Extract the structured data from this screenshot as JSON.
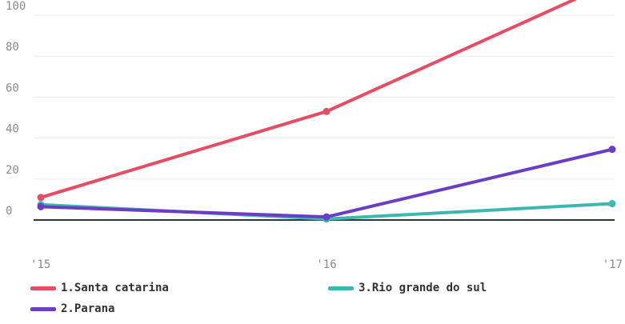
{
  "chart_data": {
    "type": "line",
    "x": [
      "'15",
      "'16",
      "'17"
    ],
    "ylim": [
      0,
      118
    ],
    "yticks": [
      0,
      20,
      40,
      60,
      80,
      100
    ],
    "grid": true,
    "legend_position": "bottom",
    "series": [
      {
        "name": "1.Santa catarina",
        "color": "#e44d64",
        "values": [
          11,
          53,
          116
        ]
      },
      {
        "name": "3.Rio grande do sul",
        "color": "#3db8b0",
        "values": [
          7.5,
          0.5,
          8
        ]
      },
      {
        "name": "2.Parana",
        "color": "#6a3ec4",
        "values": [
          6.5,
          1.5,
          34.5
        ]
      }
    ]
  }
}
